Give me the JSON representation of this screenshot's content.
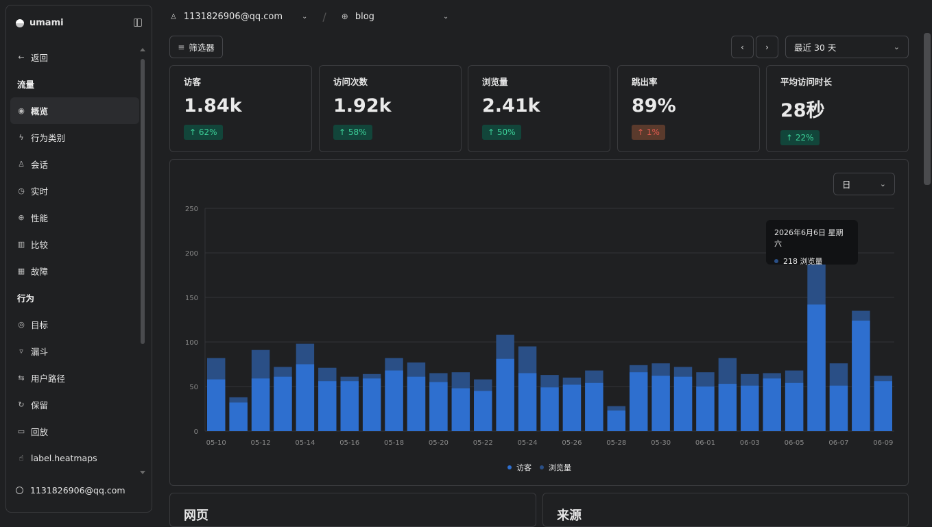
{
  "sidebar": {
    "brand": "umami",
    "back_label": "返回",
    "sections": [
      {
        "title": "流量",
        "items": [
          {
            "label": "概览",
            "icon": "eye-icon",
            "active": true
          },
          {
            "label": "行为类别",
            "icon": "bolt-icon"
          },
          {
            "label": "会话",
            "icon": "user-icon"
          },
          {
            "label": "实时",
            "icon": "clock-icon"
          },
          {
            "label": "性能",
            "icon": "gauge-icon"
          },
          {
            "label": "比较",
            "icon": "bars-icon"
          },
          {
            "label": "故障",
            "icon": "grid-icon"
          }
        ]
      },
      {
        "title": "行为",
        "items": [
          {
            "label": "目标",
            "icon": "target-icon"
          },
          {
            "label": "漏斗",
            "icon": "funnel-icon"
          },
          {
            "label": "用户路径",
            "icon": "path-icon"
          },
          {
            "label": "保留",
            "icon": "retention-icon"
          },
          {
            "label": "回放",
            "icon": "video-icon"
          },
          {
            "label": "label.heatmaps",
            "icon": "hand-icon"
          }
        ]
      }
    ],
    "user": "1131826906@qq.com"
  },
  "topbar": {
    "account": "1131826906@qq.com",
    "website": "blog"
  },
  "toolbar": {
    "filter_label": "筛选器",
    "range_label": "最近 30 天",
    "unit_label": "日"
  },
  "metrics": [
    {
      "label": "访客",
      "value": "1.84k",
      "change": "62%",
      "trend": "up"
    },
    {
      "label": "访问次数",
      "value": "1.92k",
      "change": "58%",
      "trend": "up"
    },
    {
      "label": "浏览量",
      "value": "2.41k",
      "change": "50%",
      "trend": "up"
    },
    {
      "label": "跳出率",
      "value": "89%",
      "change": "1%",
      "trend": "bad"
    },
    {
      "label": "平均访问时长",
      "value": "28秒",
      "change": "22%",
      "trend": "up"
    }
  ],
  "tooltip": {
    "date": "2026年6月6日 星期六",
    "value_line": "218 浏览量"
  },
  "legend": [
    "访客",
    "浏览量"
  ],
  "bottom_cards": [
    "网页",
    "来源"
  ],
  "colors": {
    "visitors": "#2e6fcf",
    "views": "#2a4f86",
    "up": "#3dd29a",
    "bad": "#e35b4f"
  },
  "chart_data": {
    "type": "bar",
    "stacked_overlay": true,
    "ylim": [
      0,
      250
    ],
    "yticks": [
      0,
      50,
      100,
      150,
      200,
      250
    ],
    "categories": [
      "05-10",
      "05-11",
      "05-12",
      "05-13",
      "05-14",
      "05-15",
      "05-16",
      "05-17",
      "05-18",
      "05-19",
      "05-20",
      "05-21",
      "05-22",
      "05-23",
      "05-24",
      "05-25",
      "05-26",
      "05-27",
      "05-28",
      "05-29",
      "05-30",
      "05-31",
      "06-01",
      "06-02",
      "06-03",
      "06-04",
      "06-05",
      "06-06",
      "06-07",
      "06-08",
      "06-09"
    ],
    "xtick_labels": [
      "05-10",
      "05-12",
      "05-14",
      "05-16",
      "05-18",
      "05-20",
      "05-22",
      "05-24",
      "05-26",
      "05-28",
      "05-30",
      "06-01",
      "06-03",
      "06-05",
      "06-07",
      "06-09"
    ],
    "series": [
      {
        "name": "访客",
        "values": [
          58,
          32,
          59,
          61,
          75,
          56,
          56,
          59,
          68,
          61,
          55,
          48,
          45,
          81,
          65,
          49,
          52,
          54,
          23,
          66,
          62,
          61,
          50,
          53,
          51,
          59,
          54,
          142,
          51,
          124,
          56
        ]
      },
      {
        "name": "浏览量",
        "values": [
          82,
          38,
          91,
          72,
          98,
          71,
          61,
          64,
          82,
          77,
          65,
          66,
          58,
          108,
          95,
          63,
          60,
          68,
          28,
          74,
          76,
          72,
          66,
          82,
          64,
          65,
          68,
          218,
          76,
          135,
          62
        ]
      }
    ]
  }
}
